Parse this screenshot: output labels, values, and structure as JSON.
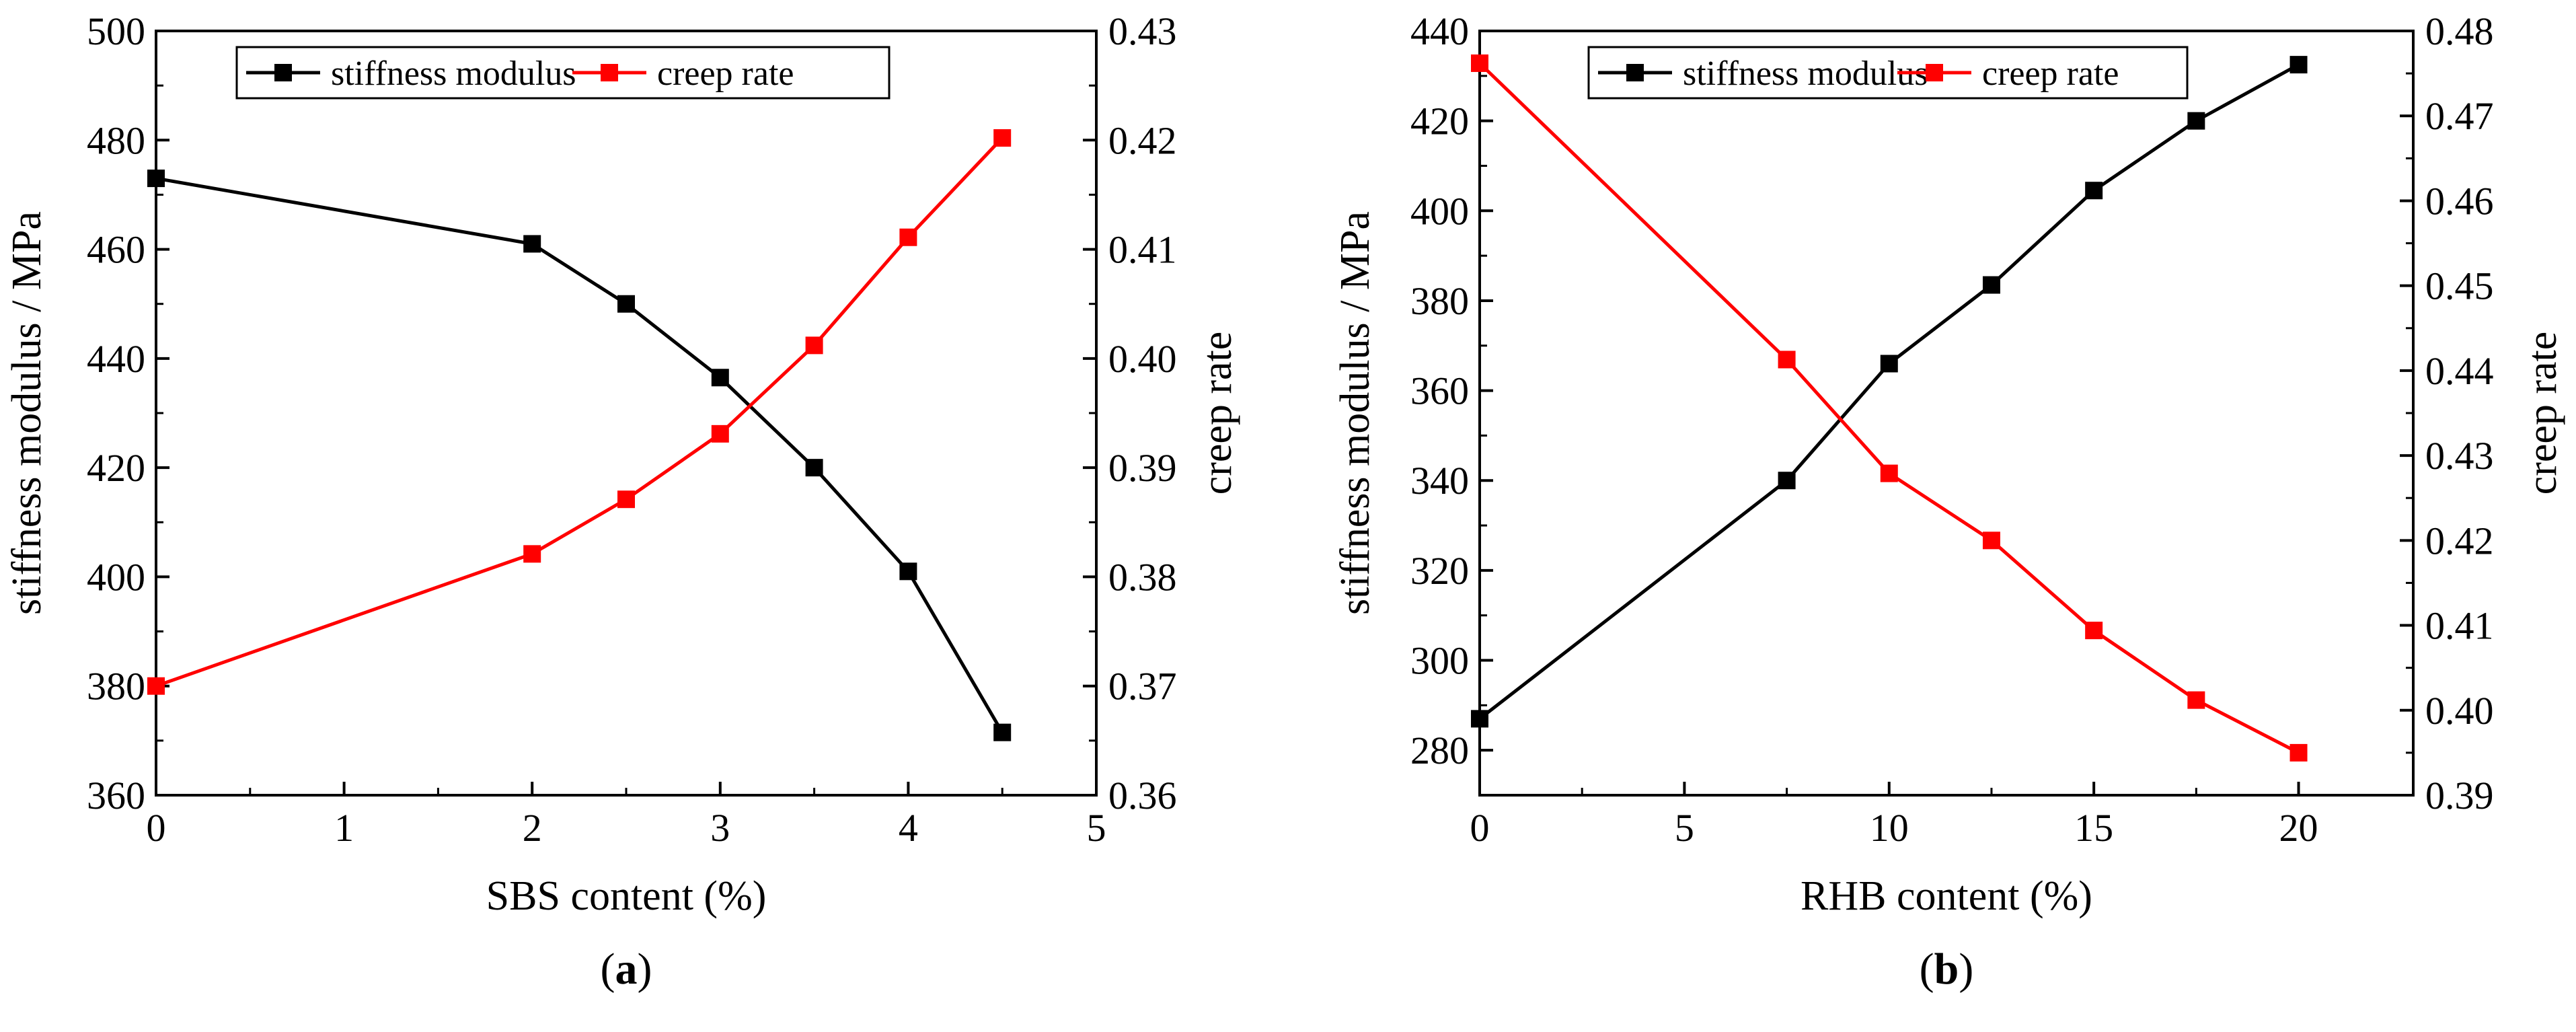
{
  "chart_data": [
    {
      "type": "line",
      "panel_label": "(a)",
      "panel_letter": "a",
      "xlabel": "SBS content (%)",
      "ylabel_left": "stiffness modulus / MPa",
      "ylabel_right": "creep rate",
      "xlim": [
        0,
        5
      ],
      "xticks": [
        0,
        1,
        2,
        3,
        4,
        5
      ],
      "ylim_left": [
        360,
        500
      ],
      "yticks_left": [
        360,
        380,
        400,
        420,
        440,
        460,
        480,
        500
      ],
      "ylim_right": [
        0.36,
        0.43
      ],
      "yticks_right": [
        "0.36",
        "0.37",
        "0.38",
        "0.39",
        "0.40",
        "0.41",
        "0.42",
        "0.43"
      ],
      "legend": [
        "stiffness modulus",
        "creep rate"
      ],
      "series": [
        {
          "name": "stiffness modulus",
          "axis": "left",
          "color": "#000000",
          "x": [
            0,
            2,
            2.5,
            3,
            3.5,
            4,
            4.5
          ],
          "values": [
            473,
            461,
            450,
            436.5,
            420,
            401,
            371.5
          ]
        },
        {
          "name": "creep rate",
          "axis": "right",
          "color": "#ff0000",
          "x": [
            0,
            2,
            2.5,
            3,
            3.5,
            4,
            4.5
          ],
          "values": [
            0.37,
            0.3821,
            0.3871,
            0.3931,
            0.4012,
            0.4111,
            0.4202
          ]
        }
      ]
    },
    {
      "type": "line",
      "panel_label": "(b)",
      "panel_letter": "b",
      "xlabel": "RHB content (%)",
      "ylabel_left": "stiffness modulus / MPa",
      "ylabel_right": "creep rate",
      "xlim": [
        0,
        22.8
      ],
      "xticks": [
        0,
        5,
        10,
        15,
        20
      ],
      "ylim_left": [
        270,
        440
      ],
      "yticks_left": [
        280,
        300,
        320,
        340,
        360,
        380,
        400,
        420,
        440
      ],
      "ylim_right": [
        0.39,
        0.48
      ],
      "yticks_right": [
        "0.39",
        "0.40",
        "0.41",
        "0.42",
        "0.43",
        "0.44",
        "0.45",
        "0.46",
        "0.47",
        "0.48"
      ],
      "legend": [
        "stiffness modulus",
        "creep rate"
      ],
      "series": [
        {
          "name": "stiffness modulus",
          "axis": "left",
          "color": "#000000",
          "x": [
            0,
            7.5,
            10,
            12.5,
            15,
            17.5,
            20
          ],
          "values": [
            287,
            340,
            366,
            383.5,
            404.5,
            420,
            432.5
          ]
        },
        {
          "name": "creep rate",
          "axis": "right",
          "color": "#ff0000",
          "x": [
            0,
            7.5,
            10,
            12.5,
            15,
            17.5,
            20
          ],
          "values": [
            0.4762,
            0.4413,
            0.4279,
            0.42,
            0.4094,
            0.4012,
            0.395
          ]
        }
      ]
    }
  ]
}
